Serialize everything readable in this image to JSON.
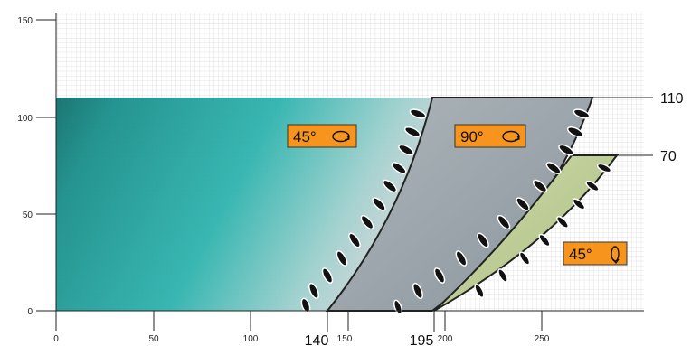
{
  "figure": {
    "x_ticks": [
      "0",
      "50",
      "100",
      "150",
      "200",
      "250"
    ],
    "y_ticks": [
      "0",
      "50",
      "100",
      "150"
    ],
    "callouts_x": [
      "140",
      "195"
    ],
    "callouts_y": [
      "110",
      "70"
    ]
  },
  "labels": {
    "left_angle": "45°",
    "middle_angle": "90°",
    "right_angle": "45°"
  },
  "colors": {
    "teal": "#1fa6a2",
    "teal_dark": "#0e6d6a",
    "gray_blade": "#9aa6ad",
    "green_blade": "#c3d29a",
    "label_orange": "#f7941d",
    "grid_line": "#bdbdbd"
  }
}
